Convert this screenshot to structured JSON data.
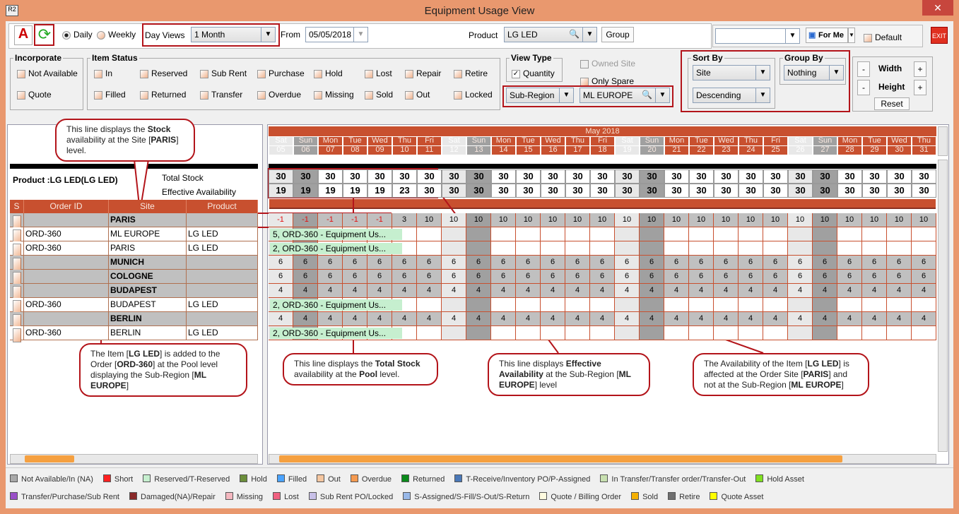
{
  "window": {
    "title": "Equipment Usage View",
    "close": "✕",
    "logo": "R2"
  },
  "toolbar": {
    "daily": "Daily",
    "weekly": "Weekly",
    "day_views_label": "Day Views",
    "day_views_value": "1 Month",
    "from_label": "From",
    "from_value": "05/05/2018",
    "product_label": "Product",
    "product_value": "LG LED",
    "group_btn": "Group",
    "saved_view_value": "",
    "for_me": "For Me",
    "default_label": "Default",
    "exit": "EXIT"
  },
  "incorporate": {
    "title": "Incorporate",
    "items": [
      "Not Available",
      "Quote"
    ]
  },
  "item_status": {
    "title": "Item Status",
    "row1": [
      "In",
      "Reserved",
      "Sub Rent",
      "Purchase",
      "Hold",
      "Lost",
      "Repair",
      "Retire"
    ],
    "row2": [
      "Filled",
      "Returned",
      "Transfer",
      "Overdue",
      "Missing",
      "Sold",
      "Out",
      "Locked"
    ]
  },
  "view_type": {
    "title": "View Type",
    "quantity": "Quantity",
    "owned_site": "Owned Site",
    "only_spare": "Only Spare",
    "level": "Sub-Region",
    "region": "ML EUROPE"
  },
  "sort_by": {
    "title": "Sort By",
    "field": "Site",
    "order": "Descending"
  },
  "group_by": {
    "title": "Group By",
    "value": "Nothing"
  },
  "size": {
    "width": "Width",
    "height": "Height",
    "minus": "-",
    "plus": "+",
    "reset": "Reset"
  },
  "left": {
    "product": "Product :LG LED(LG LED)",
    "total_stock": "Total Stock",
    "effective": "Effective Availability",
    "columns": [
      "S",
      "Order ID",
      "Site",
      "Product"
    ],
    "rows": [
      {
        "type": "group",
        "order": "",
        "site": "PARIS",
        "product": ""
      },
      {
        "type": "order",
        "order": "ORD-360",
        "site": "ML EUROPE",
        "product": "LG LED"
      },
      {
        "type": "order",
        "order": "ORD-360",
        "site": "PARIS",
        "product": "LG LED"
      },
      {
        "type": "group",
        "order": "",
        "site": "MUNICH",
        "product": ""
      },
      {
        "type": "group",
        "order": "",
        "site": "COLOGNE",
        "product": ""
      },
      {
        "type": "group",
        "order": "",
        "site": "BUDAPEST",
        "product": ""
      },
      {
        "type": "order",
        "order": "ORD-360",
        "site": "BUDAPEST",
        "product": "LG LED"
      },
      {
        "type": "group",
        "order": "",
        "site": "BERLIN",
        "product": ""
      },
      {
        "type": "order",
        "order": "ORD-360",
        "site": "BERLIN",
        "product": "LG LED"
      }
    ]
  },
  "calendar": {
    "month": "May 2018",
    "dows": [
      "Sat",
      "Sun",
      "Mon",
      "Tue",
      "Wed",
      "Thu",
      "Fri",
      "Sat",
      "Sun",
      "Mon",
      "Tue",
      "Wed",
      "Thu",
      "Fri",
      "Sat",
      "Sun",
      "Mon",
      "Tue",
      "Wed",
      "Thu",
      "Fri",
      "Sat",
      "Sun",
      "Mon",
      "Tue",
      "Wed",
      "Thu"
    ],
    "dates": [
      "05",
      "06",
      "07",
      "08",
      "09",
      "10",
      "11",
      "12",
      "13",
      "14",
      "15",
      "16",
      "17",
      "18",
      "19",
      "20",
      "21",
      "22",
      "23",
      "24",
      "25",
      "26",
      "27",
      "28",
      "29",
      "30",
      "31"
    ],
    "total_stock": [
      30,
      30,
      30,
      30,
      30,
      30,
      30,
      30,
      30,
      30,
      30,
      30,
      30,
      30,
      30,
      30,
      30,
      30,
      30,
      30,
      30,
      30,
      30,
      30,
      30,
      30,
      30
    ],
    "effective": [
      19,
      19,
      19,
      19,
      19,
      23,
      30,
      30,
      30,
      30,
      30,
      30,
      30,
      30,
      30,
      30,
      30,
      30,
      30,
      30,
      30,
      30,
      30,
      30,
      30,
      30,
      30
    ],
    "rows": [
      {
        "values": [
          -1,
          -1,
          -1,
          -1,
          -1,
          3,
          10,
          10,
          10,
          10,
          10,
          10,
          10,
          10,
          10,
          10,
          10,
          10,
          10,
          10,
          10,
          10,
          10,
          10,
          10,
          10,
          10
        ]
      },
      {
        "bar": "5, ORD-360 - Equipment Us..."
      },
      {
        "bar": "2, ORD-360 - Equipment Us..."
      },
      {
        "values": [
          6,
          6,
          6,
          6,
          6,
          6,
          6,
          6,
          6,
          6,
          6,
          6,
          6,
          6,
          6,
          6,
          6,
          6,
          6,
          6,
          6,
          6,
          6,
          6,
          6,
          6,
          6
        ]
      },
      {
        "values": [
          6,
          6,
          6,
          6,
          6,
          6,
          6,
          6,
          6,
          6,
          6,
          6,
          6,
          6,
          6,
          6,
          6,
          6,
          6,
          6,
          6,
          6,
          6,
          6,
          6,
          6,
          6
        ]
      },
      {
        "values": [
          4,
          4,
          4,
          4,
          4,
          4,
          4,
          4,
          4,
          4,
          4,
          4,
          4,
          4,
          4,
          4,
          4,
          4,
          4,
          4,
          4,
          4,
          4,
          4,
          4,
          4,
          4
        ]
      },
      {
        "bar": "2, ORD-360 - Equipment Us..."
      },
      {
        "values": [
          4,
          4,
          4,
          4,
          4,
          4,
          4,
          4,
          4,
          4,
          4,
          4,
          4,
          4,
          4,
          4,
          4,
          4,
          4,
          4,
          4,
          4,
          4,
          4,
          4,
          4,
          4
        ]
      },
      {
        "bar": "2, ORD-360 - Equipment Us..."
      }
    ]
  },
  "callouts": [
    [
      {
        "t": "This line displays the "
      },
      {
        "t": "Stock",
        "b": 1
      },
      {
        "t": " availability at the Site ["
      },
      {
        "t": "PARIS",
        "b": 1
      },
      {
        "t": "] level."
      }
    ],
    [
      {
        "t": "This line displays the "
      },
      {
        "t": "Total Stock",
        "b": 1
      },
      {
        "t": " availability at the "
      },
      {
        "t": "Pool",
        "b": 1
      },
      {
        "t": " level."
      }
    ],
    [
      {
        "t": "This line displays "
      },
      {
        "t": "Effective Availability",
        "b": 1
      },
      {
        "t": " at the Sub-Region ["
      },
      {
        "t": "ML EUROPE",
        "b": 1
      },
      {
        "t": "] level"
      }
    ],
    [
      {
        "t": "The Availability of the Item ["
      },
      {
        "t": "LG LED",
        "b": 1
      },
      {
        "t": "] is affected at the Order Site ["
      },
      {
        "t": "PARIS",
        "b": 1
      },
      {
        "t": "] and not at the Sub-Region ["
      },
      {
        "t": "ML EUROPE",
        "b": 1
      },
      {
        "t": "]"
      }
    ],
    [
      {
        "t": "The Item ["
      },
      {
        "t": "LG LED",
        "b": 1
      },
      {
        "t": "] is added to the Order ["
      },
      {
        "t": "ORD-360",
        "b": 1
      },
      {
        "t": "] at the Pool level displaying the Sub-Region ["
      },
      {
        "t": "ML EUROPE",
        "b": 1
      },
      {
        "t": "]"
      }
    ]
  ],
  "legend": [
    [
      {
        "l": "Not Available/In (NA)",
        "c": "#a8a8a8"
      },
      {
        "l": "Short",
        "c": "#ff2020"
      },
      {
        "l": "Reserved/T-Reserved",
        "c": "#c6efcf"
      },
      {
        "l": "Hold",
        "c": "#6b8e3a"
      },
      {
        "l": "Filled",
        "c": "#4aa3ff"
      },
      {
        "l": "Out",
        "c": "#f5c6a0"
      },
      {
        "l": "Overdue",
        "c": "#f59a50"
      },
      {
        "l": "Returned",
        "c": "#0a8a1a"
      },
      {
        "l": "T-Receive/Inventory PO/P-Assigned",
        "c": "#4a78b8"
      },
      {
        "l": "In Transfer/Transfer order/Transfer-Out",
        "c": "#c8e0b0"
      },
      {
        "l": "Hold Asset",
        "c": "#80e020"
      }
    ],
    [
      {
        "l": "Transfer/Purchase/Sub Rent",
        "c": "#9a50c8"
      },
      {
        "l": "Damaged(NA)/Repair",
        "c": "#8a2a2a"
      },
      {
        "l": "Missing",
        "c": "#f5b8c0"
      },
      {
        "l": "Lost",
        "c": "#f06080"
      },
      {
        "l": "Sub Rent PO/Locked",
        "c": "#c8c0e8"
      },
      {
        "l": "S-Assigned/S-Fill/S-Out/S-Return",
        "c": "#98b8e8"
      },
      {
        "l": "Quote / Billing Order",
        "c": "#fffbe0"
      },
      {
        "l": "Sold",
        "c": "#f5b000"
      },
      {
        "l": "Retire",
        "c": "#707070"
      },
      {
        "l": "Quote Asset",
        "c": "#ffff00"
      }
    ]
  ],
  "colors": {
    "header": "#c8502f",
    "sat": "#e8e8e8",
    "sun": "#a0a0a0",
    "weekday_group": "#c0c0c0",
    "highlight": "#b3141a"
  }
}
